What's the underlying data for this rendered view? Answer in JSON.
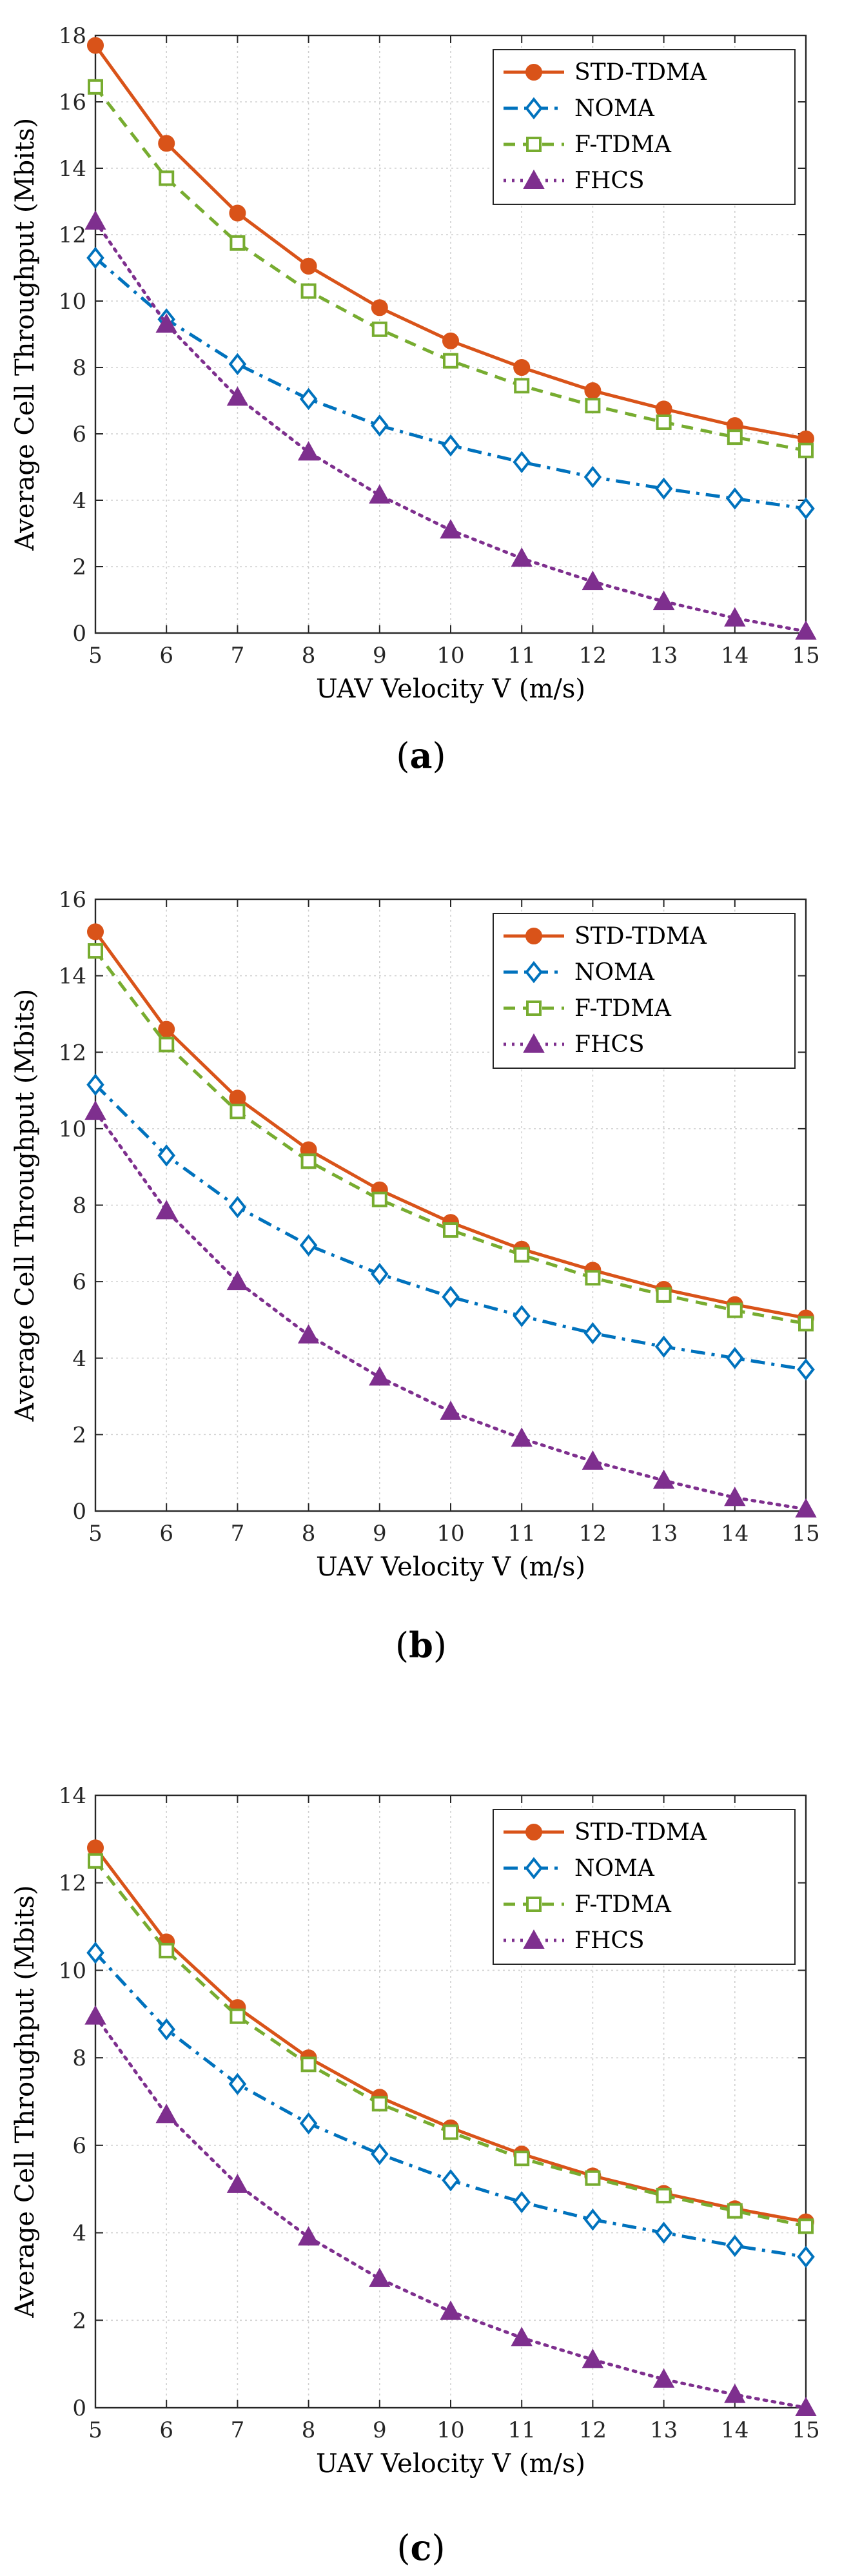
{
  "charts": [
    {
      "caption_letter": "a",
      "chart_data": {
        "type": "line",
        "xlabel": "UAV Velocity V (m/s)",
        "ylabel": "Average Cell Throughput (Mbits)",
        "xlim": [
          5,
          15
        ],
        "ylim": [
          0,
          18
        ],
        "xticks": [
          5,
          6,
          7,
          8,
          9,
          10,
          11,
          12,
          13,
          14,
          15
        ],
        "yticks": [
          0,
          2,
          4,
          6,
          8,
          10,
          12,
          14,
          16,
          18
        ],
        "grid": true,
        "legend_position": "top-right",
        "x": [
          5,
          6,
          7,
          8,
          9,
          10,
          11,
          12,
          13,
          14,
          15
        ],
        "series": [
          {
            "name": "STD-TDMA",
            "values": [
              17.7,
              14.75,
              12.65,
              11.05,
              9.8,
              8.8,
              8.0,
              7.3,
              6.75,
              6.25,
              5.85
            ]
          },
          {
            "name": "NOMA",
            "values": [
              11.3,
              9.45,
              8.1,
              7.05,
              6.25,
              5.65,
              5.15,
              4.7,
              4.35,
              4.05,
              3.75
            ]
          },
          {
            "name": "F-TDMA",
            "values": [
              16.45,
              13.7,
              11.75,
              10.3,
              9.15,
              8.2,
              7.45,
              6.85,
              6.35,
              5.9,
              5.5
            ]
          },
          {
            "name": "FHCS",
            "values": [
              12.4,
              9.3,
              7.1,
              5.45,
              4.15,
              3.1,
              2.25,
              1.55,
              0.95,
              0.45,
              0.05
            ]
          }
        ]
      }
    },
    {
      "caption_letter": "b",
      "chart_data": {
        "type": "line",
        "xlabel": "UAV Velocity V (m/s)",
        "ylabel": "Average Cell Throughput (Mbits)",
        "xlim": [
          5,
          15
        ],
        "ylim": [
          0,
          16
        ],
        "xticks": [
          5,
          6,
          7,
          8,
          9,
          10,
          11,
          12,
          13,
          14,
          15
        ],
        "yticks": [
          0,
          2,
          4,
          6,
          8,
          10,
          12,
          14,
          16
        ],
        "grid": true,
        "legend_position": "top-right",
        "x": [
          5,
          6,
          7,
          8,
          9,
          10,
          11,
          12,
          13,
          14,
          15
        ],
        "series": [
          {
            "name": "STD-TDMA",
            "values": [
              15.15,
              12.6,
              10.8,
              9.45,
              8.4,
              7.55,
              6.85,
              6.3,
              5.8,
              5.4,
              5.05
            ]
          },
          {
            "name": "NOMA",
            "values": [
              11.15,
              9.3,
              7.95,
              6.95,
              6.2,
              5.6,
              5.1,
              4.65,
              4.3,
              4.0,
              3.7
            ]
          },
          {
            "name": "F-TDMA",
            "values": [
              14.65,
              12.2,
              10.45,
              9.15,
              8.15,
              7.35,
              6.7,
              6.1,
              5.65,
              5.25,
              4.9
            ]
          },
          {
            "name": "FHCS",
            "values": [
              10.45,
              7.85,
              6.0,
              4.6,
              3.5,
              2.6,
              1.9,
              1.3,
              0.8,
              0.35,
              0.05
            ]
          }
        ]
      }
    },
    {
      "caption_letter": "c",
      "chart_data": {
        "type": "line",
        "xlabel": "UAV Velocity V (m/s)",
        "ylabel": "Average Cell Throughput (Mbits)",
        "xlim": [
          5,
          15
        ],
        "ylim": [
          0,
          14
        ],
        "xticks": [
          5,
          6,
          7,
          8,
          9,
          10,
          11,
          12,
          13,
          14,
          15
        ],
        "yticks": [
          0,
          2,
          4,
          6,
          8,
          10,
          12,
          14
        ],
        "grid": true,
        "legend_position": "top-right",
        "x": [
          5,
          6,
          7,
          8,
          9,
          10,
          11,
          12,
          13,
          14,
          15
        ],
        "series": [
          {
            "name": "STD-TDMA",
            "values": [
              12.8,
              10.65,
              9.15,
              8.0,
              7.1,
              6.4,
              5.8,
              5.3,
              4.9,
              4.55,
              4.25
            ]
          },
          {
            "name": "NOMA",
            "values": [
              10.4,
              8.65,
              7.4,
              6.5,
              5.8,
              5.2,
              4.7,
              4.3,
              4.0,
              3.7,
              3.45
            ]
          },
          {
            "name": "F-TDMA",
            "values": [
              12.5,
              10.45,
              8.95,
              7.85,
              6.95,
              6.3,
              5.7,
              5.25,
              4.85,
              4.5,
              4.15
            ]
          },
          {
            "name": "FHCS",
            "values": [
              8.95,
              6.7,
              5.1,
              3.9,
              2.95,
              2.2,
              1.6,
              1.1,
              0.65,
              0.3,
              0.0
            ]
          }
        ]
      }
    }
  ],
  "style": {
    "colors": [
      "#d95319",
      "#0072bd",
      "#77ac30",
      "#7e2f8e"
    ],
    "markers": [
      "circle",
      "diamond",
      "square",
      "triangle"
    ]
  }
}
